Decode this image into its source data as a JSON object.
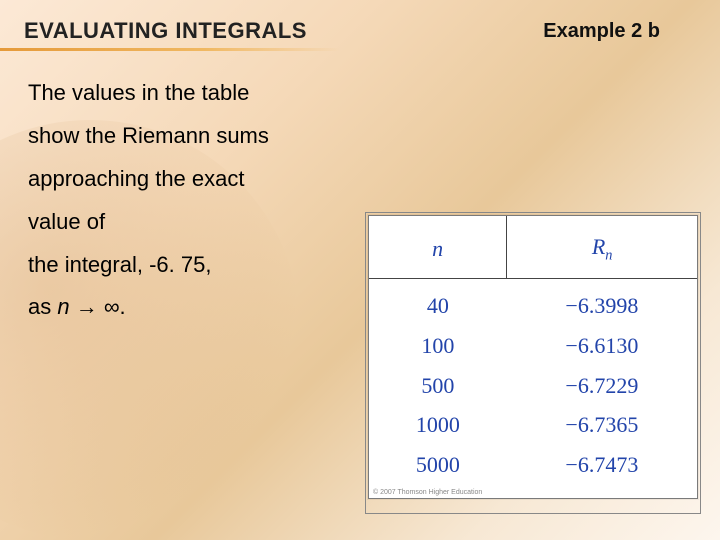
{
  "title": "EVALUATING INTEGRALS",
  "example_label": "Example 2 b",
  "body": {
    "line1": "The values in the table",
    "line2": "show the Riemann sums",
    "line3": "approaching the exact",
    "line4": "value of",
    "line5_pre": "the integral, ",
    "line5_val": "-6. 75,",
    "line6_pre": "as ",
    "line6_n": "n",
    "line6_post": " → ∞."
  },
  "table": {
    "header_n": "n",
    "header_Rn_R": "R",
    "header_Rn_sub": "n",
    "columns": [
      "n",
      "Rn"
    ],
    "rows": [
      {
        "n": "40",
        "Rn": "−6.3998"
      },
      {
        "n": "100",
        "Rn": "−6.6130"
      },
      {
        "n": "500",
        "Rn": "−6.7229"
      },
      {
        "n": "1000",
        "Rn": "−6.7365"
      },
      {
        "n": "5000",
        "Rn": "−6.7473"
      }
    ],
    "copyright": "© 2007 Thomson Higher Education"
  },
  "style": {
    "title_fontsize_pt": 17,
    "body_fontsize_pt": 17,
    "table_fontsize_pt": 17,
    "table_font_family": "Times New Roman",
    "table_text_color": "#2244aa",
    "table_border_color": "#444444",
    "table_background": "#ffffff",
    "title_underline_color": "#e59a3a",
    "background_gradient": [
      "#fce9d6",
      "#f5d9b8",
      "#e8c89a",
      "#f7e8d4",
      "#fdf6ee"
    ],
    "example_label_color": "#111111",
    "body_text_color": "#000000"
  }
}
